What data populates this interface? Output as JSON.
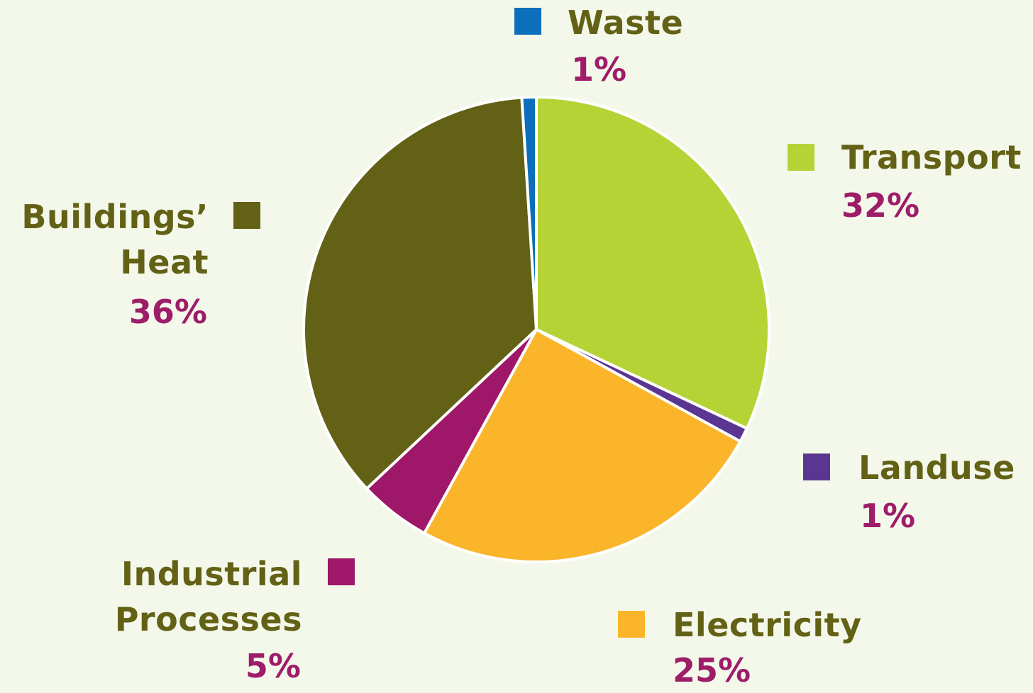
{
  "chart_data": {
    "type": "pie",
    "title": "",
    "slices": [
      {
        "name": "Transport",
        "label": "Transport",
        "value": 32,
        "value_label": "32%",
        "color": "#b6d335"
      },
      {
        "name": "Landuse",
        "label": "Landuse",
        "value": 1,
        "value_label": "1%",
        "color": "#5b3592"
      },
      {
        "name": "Electricity",
        "label": "Electricity",
        "value": 25,
        "value_label": "25%",
        "color": "#fbb52a"
      },
      {
        "name": "Industrial Processes",
        "label": "Industrial\nProcesses",
        "value": 5,
        "value_label": "5%",
        "color": "#9e1768"
      },
      {
        "name": "Buildings' Heat",
        "label": "Buildings’\nHeat",
        "value": 36,
        "value_label": "36%",
        "color": "#626115"
      },
      {
        "name": "Waste",
        "label": "Waste",
        "value": 1,
        "value_label": "1%",
        "color": "#0b6fbb"
      }
    ],
    "legend": "labels around pie",
    "colors": {
      "label_text": "#626115",
      "percent_text": "#9e1d69",
      "background": "#f4f8ea",
      "separator": "#ffffff"
    }
  }
}
